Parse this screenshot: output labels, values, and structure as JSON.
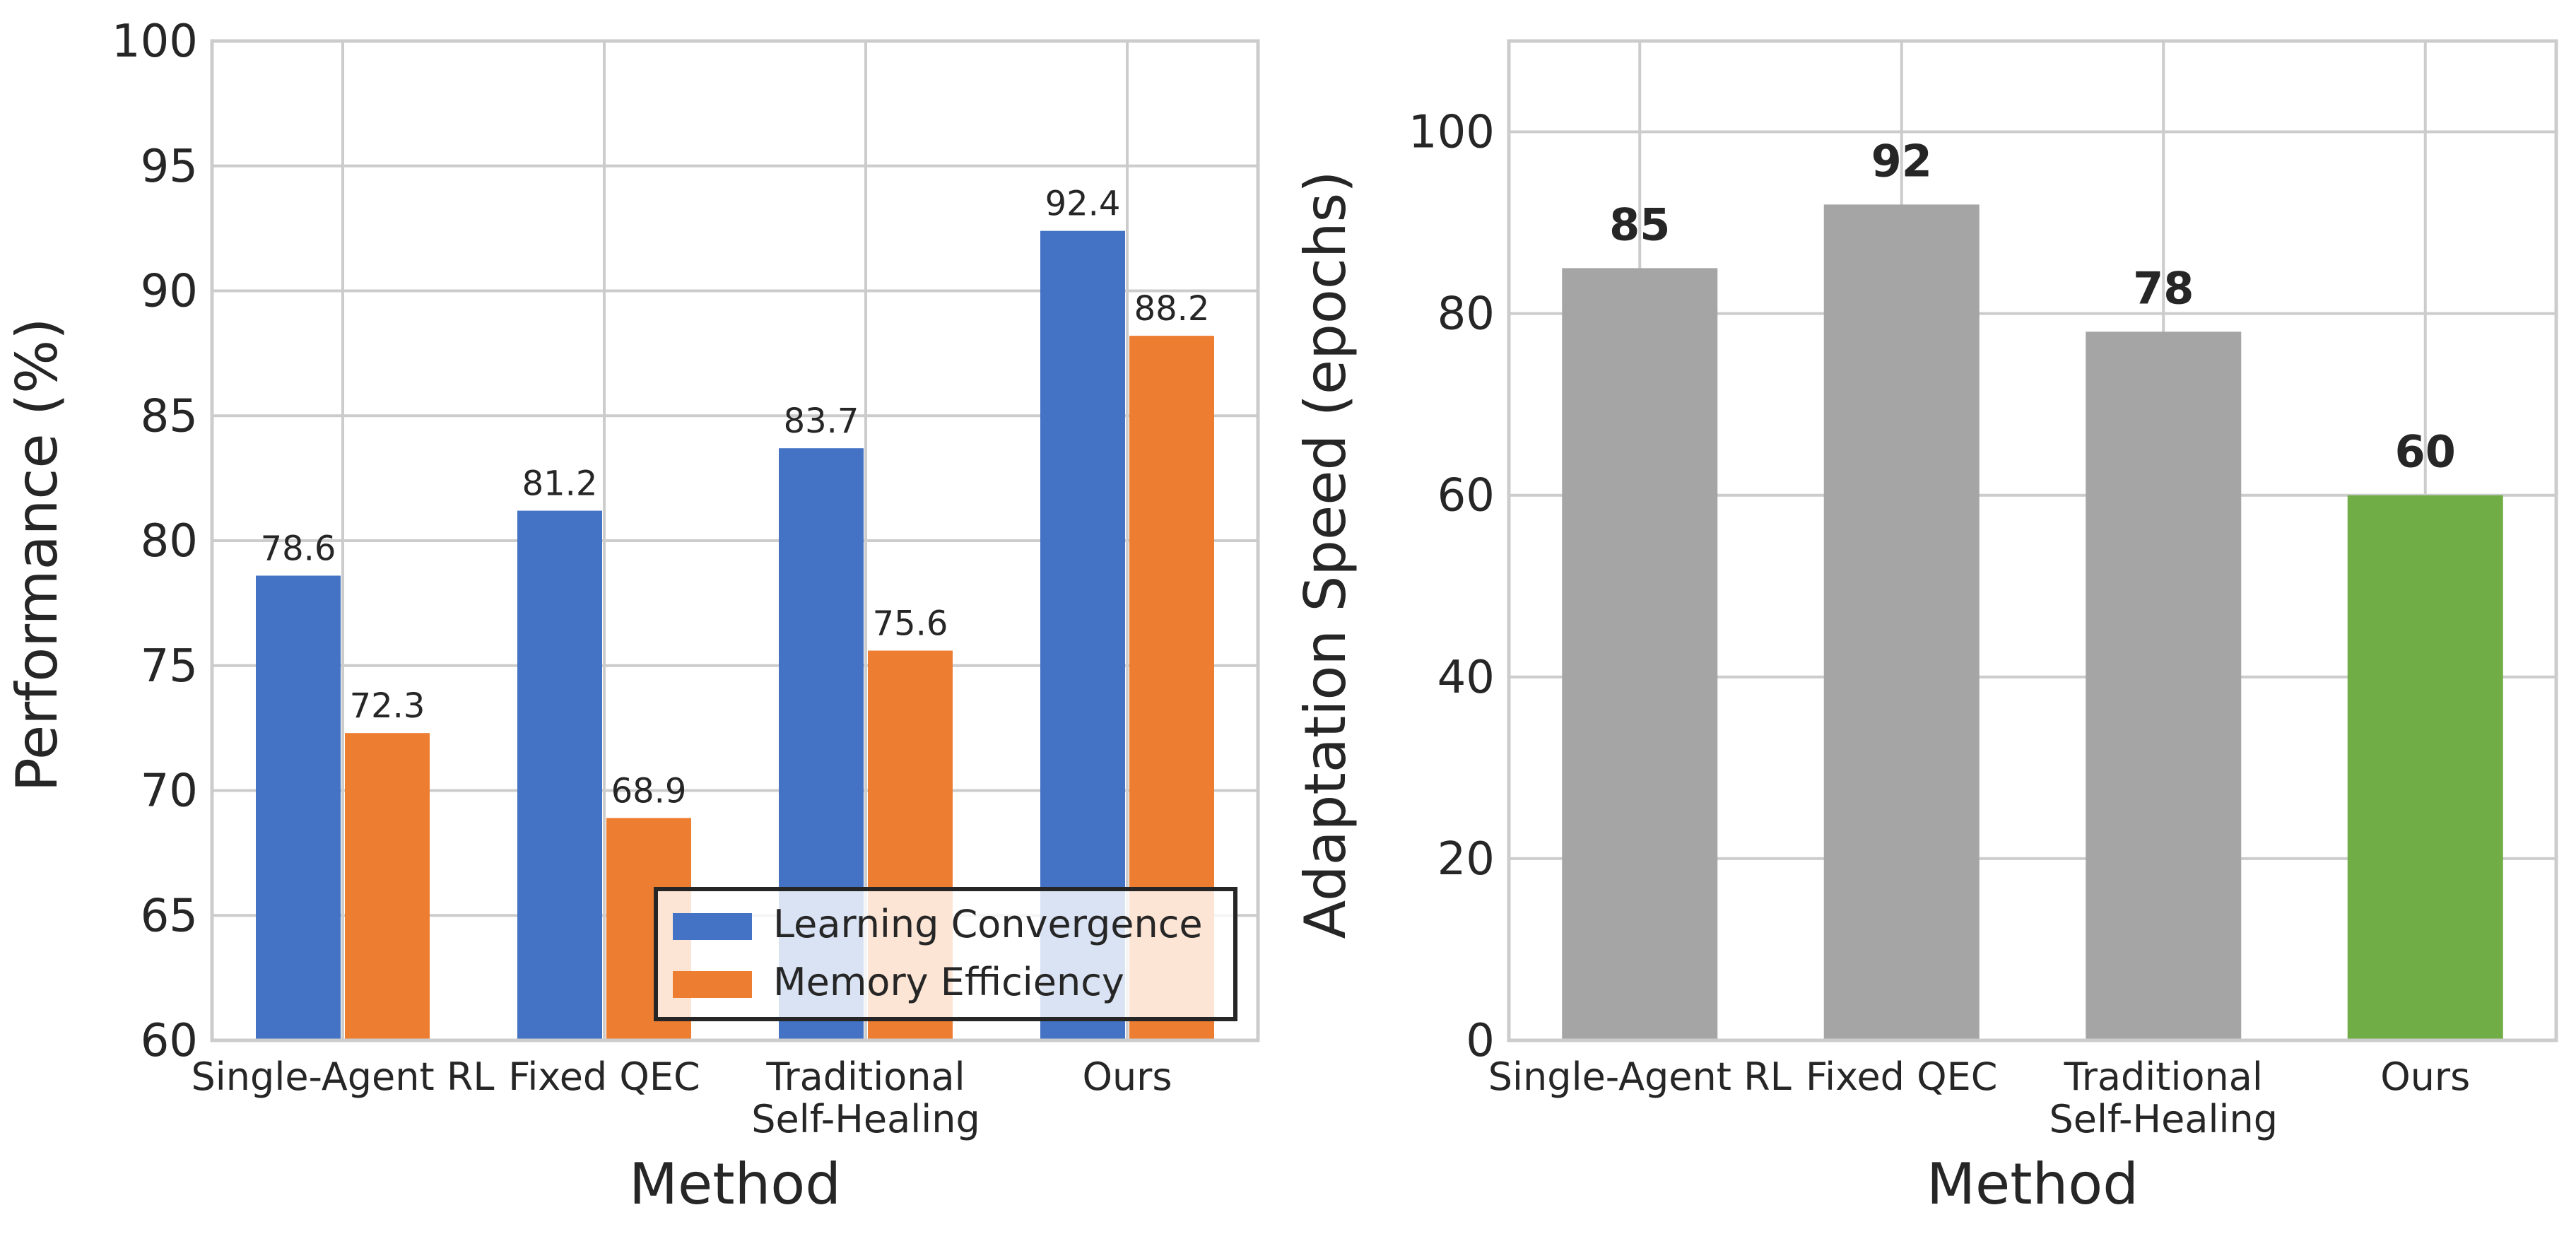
{
  "chart_data": [
    {
      "type": "bar",
      "categories": [
        "Single-Agent RL",
        "Fixed QEC",
        "Traditional\nSelf-Healing",
        "Ours"
      ],
      "series": [
        {
          "name": "Learning Convergence",
          "values": [
            78.6,
            81.2,
            83.7,
            92.4
          ],
          "color": "#4472C4"
        },
        {
          "name": "Memory Efficiency",
          "values": [
            72.3,
            68.9,
            75.6,
            88.2
          ],
          "color": "#ED7D31"
        }
      ],
      "value_labels": [
        [
          "78.6",
          "81.2",
          "83.7",
          "92.4"
        ],
        [
          "72.3",
          "68.9",
          "75.6",
          "88.2"
        ]
      ],
      "xlabel": "Method",
      "ylabel": "Performance (%)",
      "ylim": [
        60,
        100
      ],
      "yticks": [
        "60",
        "65",
        "70",
        "75",
        "80",
        "85",
        "90",
        "95",
        "100"
      ],
      "legend_position": "lower-right",
      "grid": true
    },
    {
      "type": "bar",
      "categories": [
        "Single-Agent RL",
        "Fixed QEC",
        "Traditional\nSelf-Healing",
        "Ours"
      ],
      "values": [
        85,
        92,
        78,
        60
      ],
      "value_labels": [
        "85",
        "92",
        "78",
        "60"
      ],
      "colors": [
        "#A5A5A5",
        "#A5A5A5",
        "#A5A5A5",
        "#70AD47"
      ],
      "xlabel": "Method",
      "ylabel": "Adaptation Speed (epochs)",
      "ylim": [
        0,
        110
      ],
      "yticks": [
        "0",
        "20",
        "40",
        "60",
        "80",
        "100"
      ],
      "grid": true
    }
  ]
}
